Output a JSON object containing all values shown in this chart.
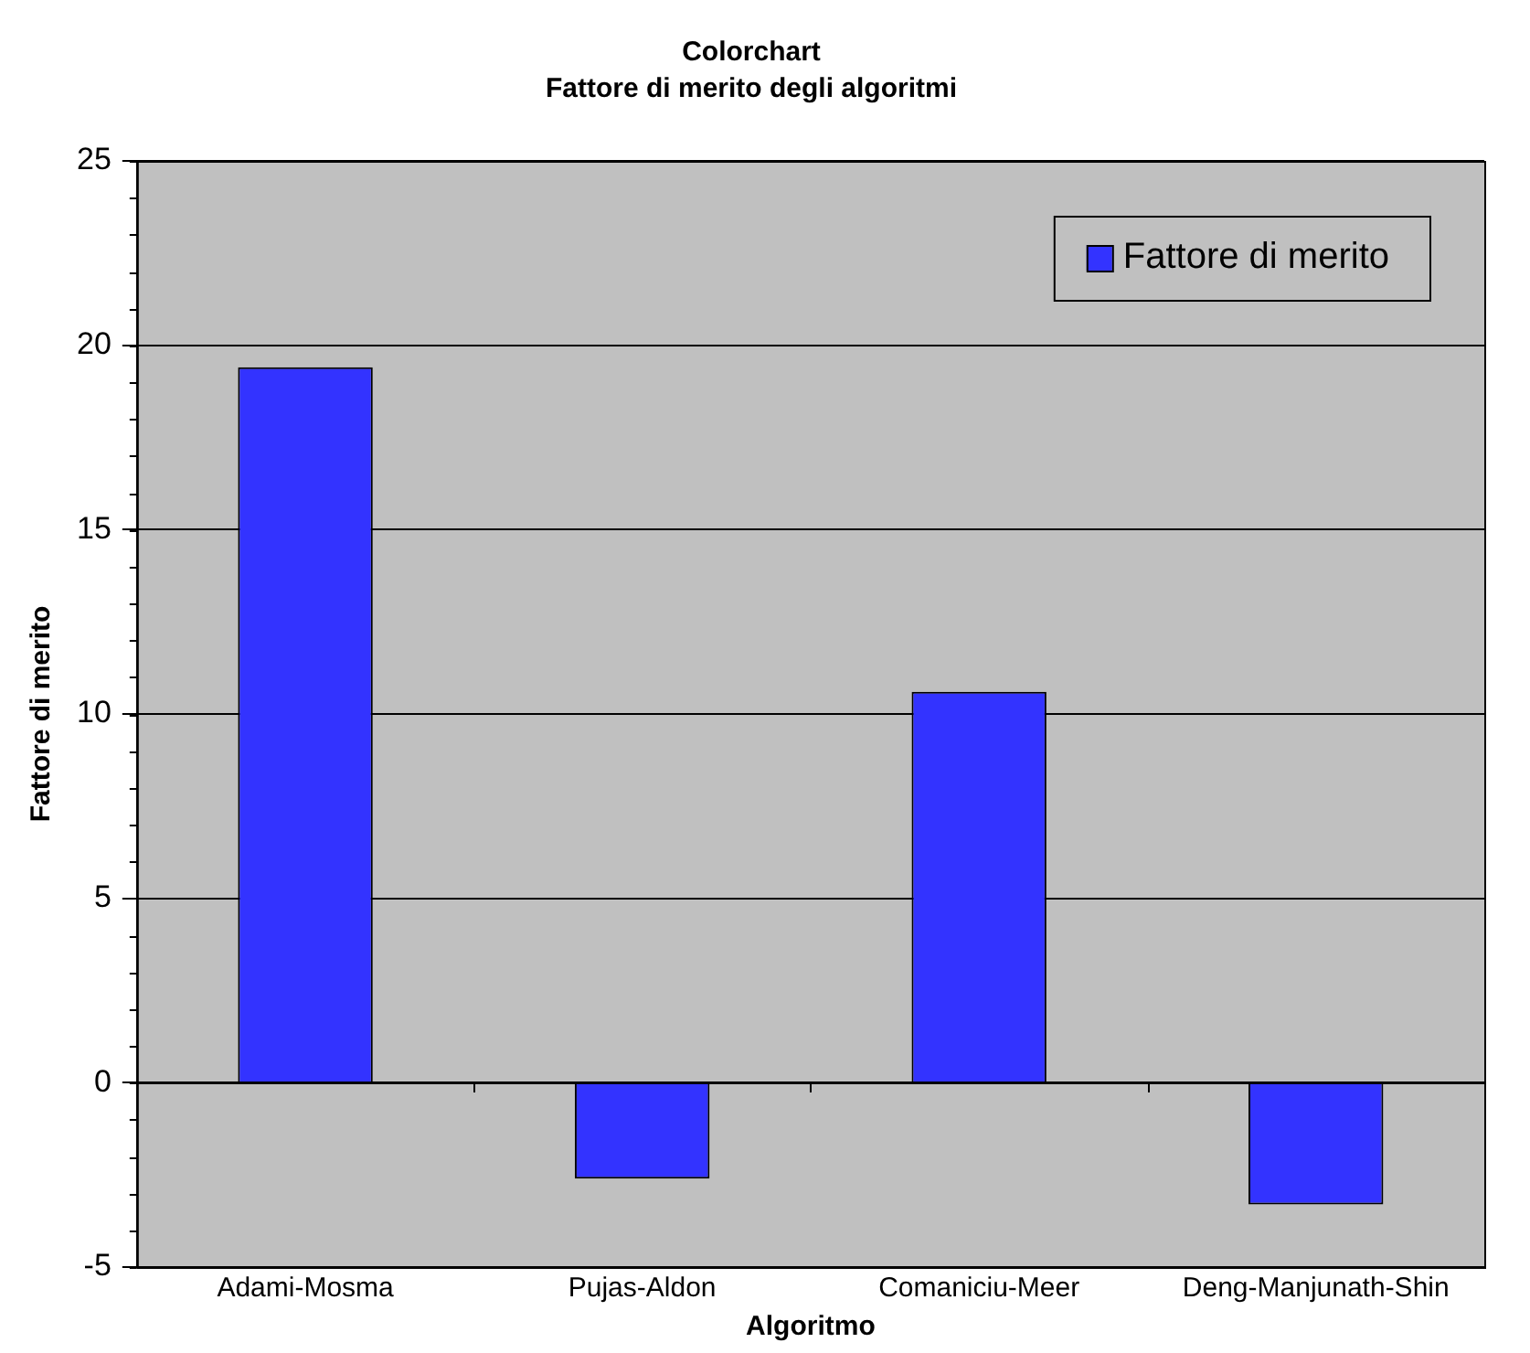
{
  "chart_data": {
    "type": "bar",
    "title": "Colorchart",
    "subtitle": "Fattore di merito degli algoritmi",
    "xlabel": "Algoritmo",
    "ylabel": "Fattore di merito",
    "categories": [
      "Adami-Mosma",
      "Pujas-Aldon",
      "Comaniciu-Meer",
      "Deng-Manjunath-Shin"
    ],
    "series": [
      {
        "name": "Fattore di merito",
        "color": "#3333ff",
        "values": [
          19.4,
          -2.6,
          10.6,
          -3.3
        ]
      }
    ],
    "ylim": [
      -5,
      25
    ],
    "yticks": [
      -5,
      0,
      5,
      10,
      15,
      20,
      25
    ],
    "grid": "y",
    "legend": "top right"
  }
}
